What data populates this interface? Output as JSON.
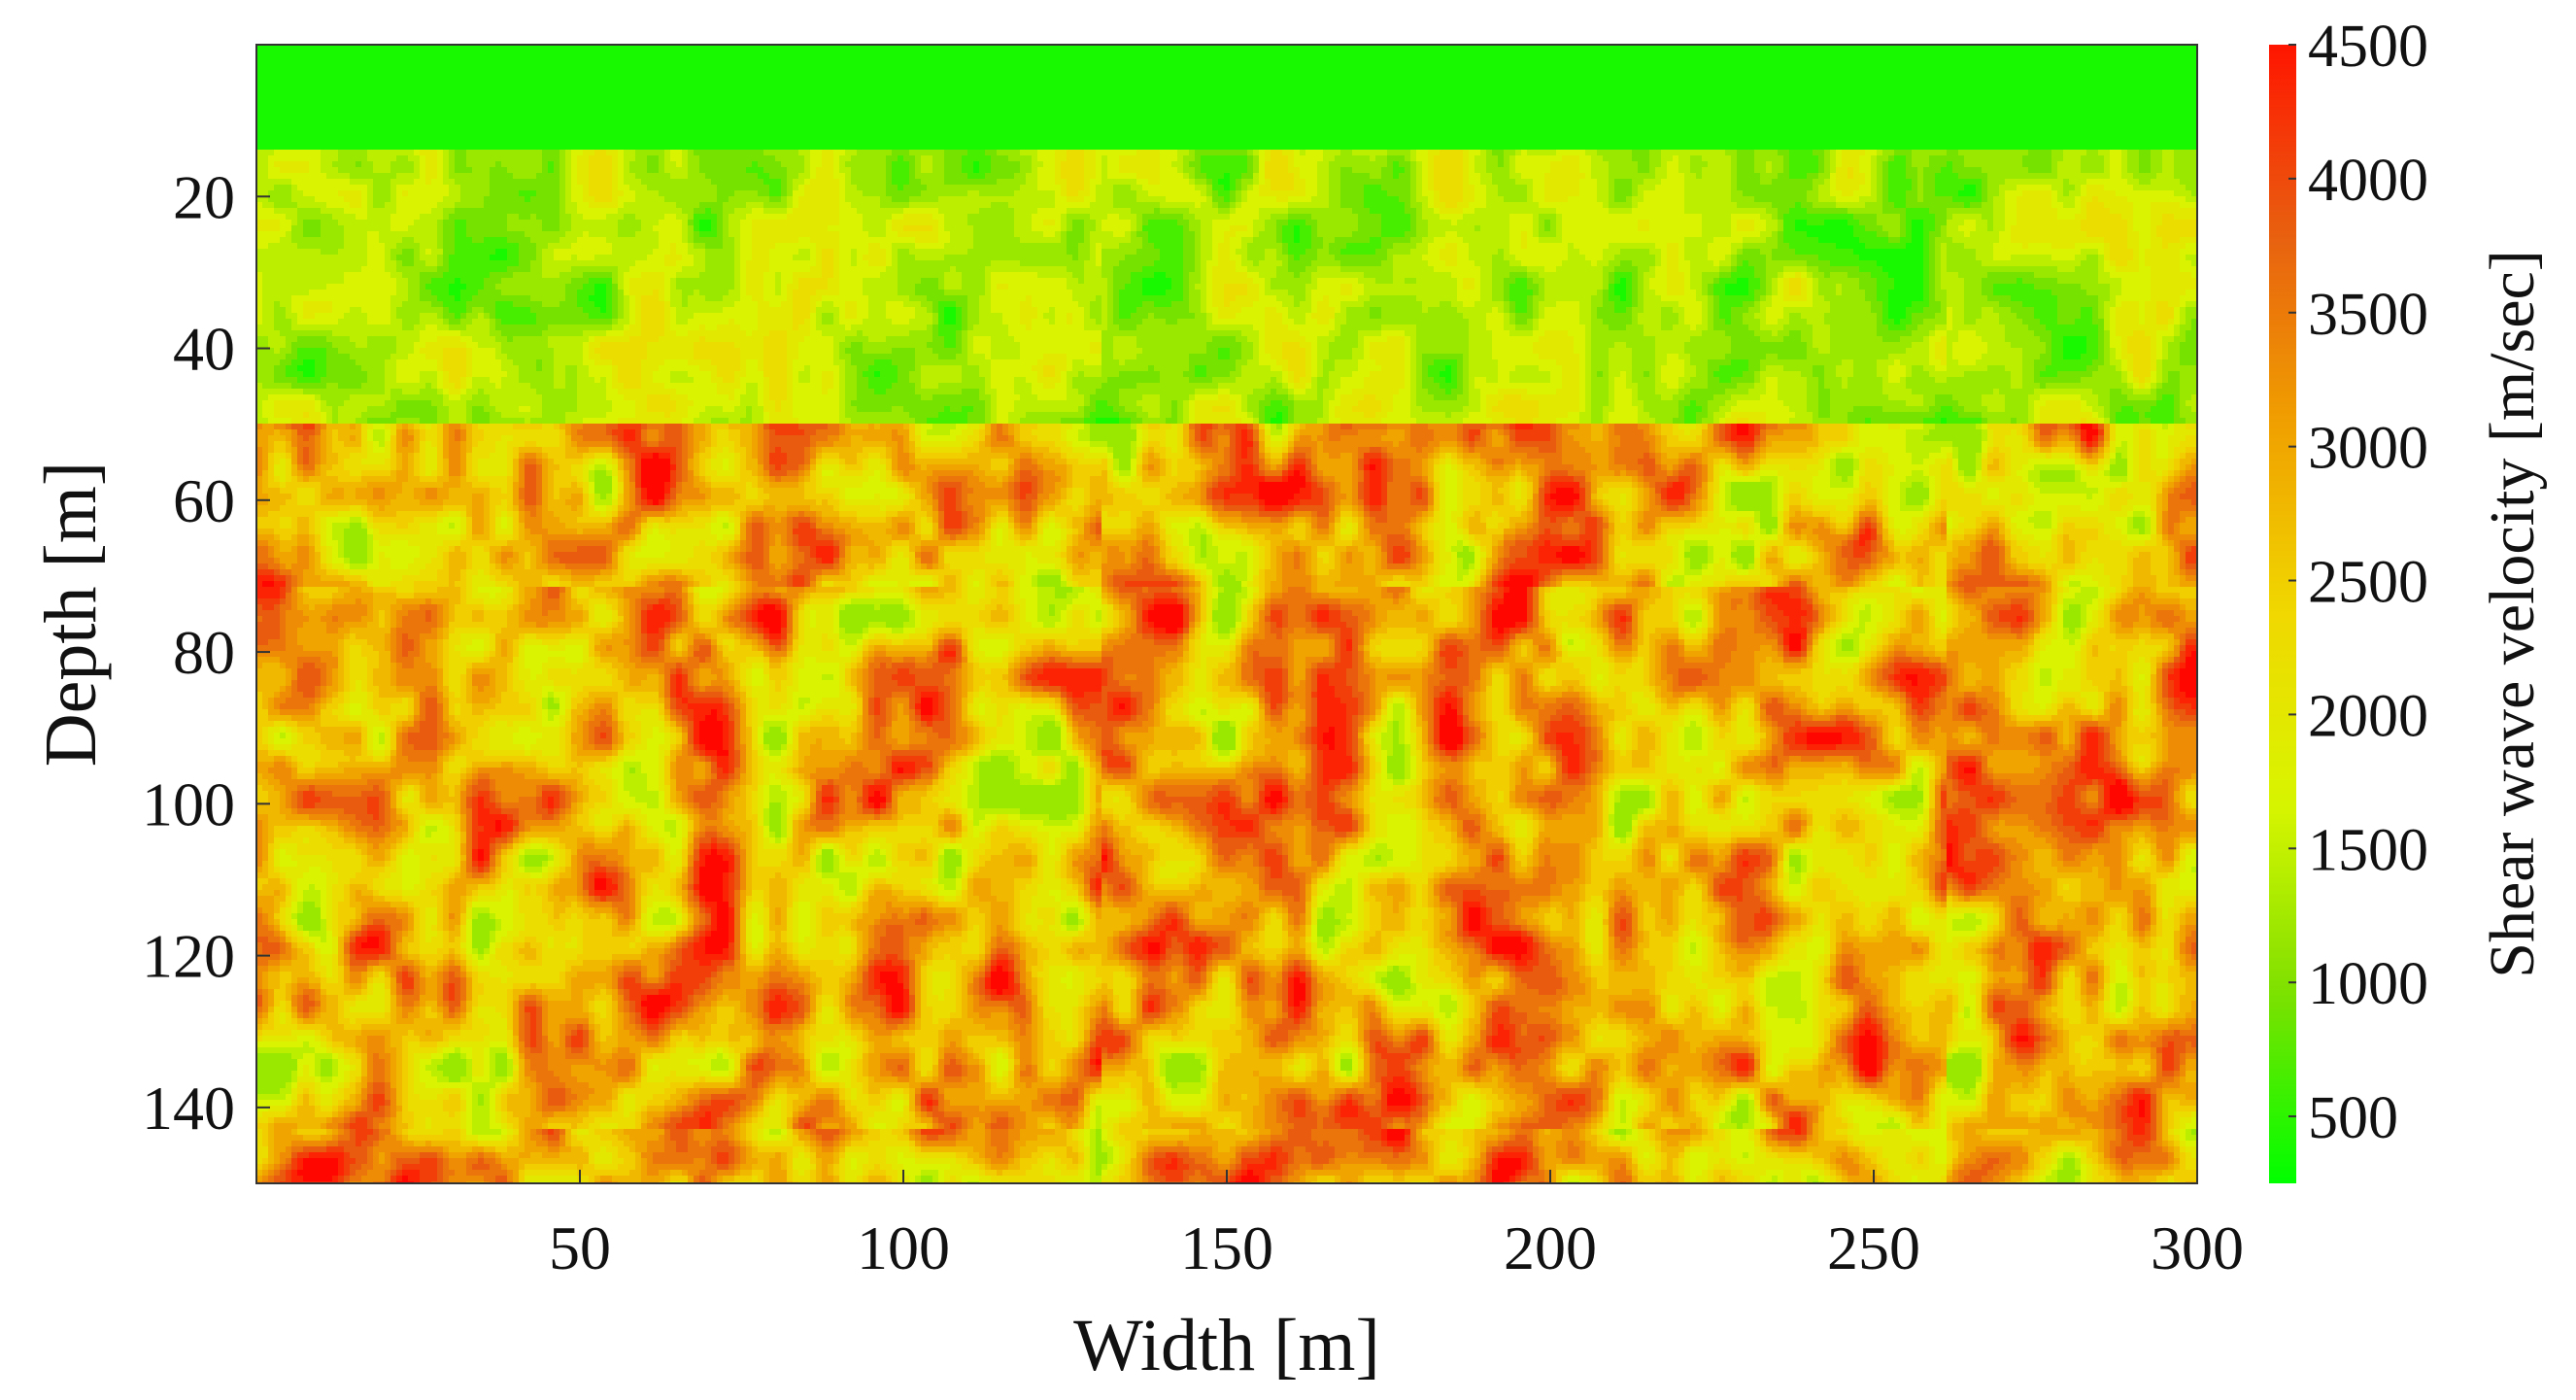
{
  "chart_data": {
    "type": "heatmap",
    "title": "",
    "xlabel": "Width [m]",
    "ylabel": "Depth [m]",
    "xlim": [
      0,
      300
    ],
    "ylim": [
      150,
      0
    ],
    "x_ticks": [
      "50",
      "100",
      "150",
      "200",
      "250",
      "300"
    ],
    "y_ticks": [
      "20",
      "40",
      "60",
      "80",
      "100",
      "120",
      "140"
    ],
    "x_tick_values": [
      50,
      100,
      150,
      200,
      250,
      300
    ],
    "y_tick_values": [
      20,
      40,
      60,
      80,
      100,
      120,
      140
    ],
    "grid": false,
    "colorbar": {
      "label": "Shear wave velocity [m/sec]",
      "range": [
        250,
        4500
      ],
      "ticks": [
        "500",
        "1000",
        "1500",
        "2000",
        "2500",
        "3000",
        "3500",
        "4000",
        "4500"
      ],
      "tick_values": [
        500,
        1000,
        1500,
        2000,
        2500,
        3000,
        3500,
        4000,
        4500
      ],
      "colors": [
        "#00ff00",
        "#7ee000",
        "#d8f500",
        "#f0d800",
        "#f0a000",
        "#e86010",
        "#ff1500"
      ]
    },
    "layers": [
      {
        "depth_from": 0,
        "depth_to": 14,
        "velocity_min": 300,
        "velocity_max": 500
      },
      {
        "depth_from": 14,
        "depth_to": 50,
        "velocity_min": 500,
        "velocity_max": 2200
      },
      {
        "depth_from": 50,
        "depth_to": 150,
        "velocity_min": 1300,
        "velocity_max": 4500
      }
    ]
  }
}
